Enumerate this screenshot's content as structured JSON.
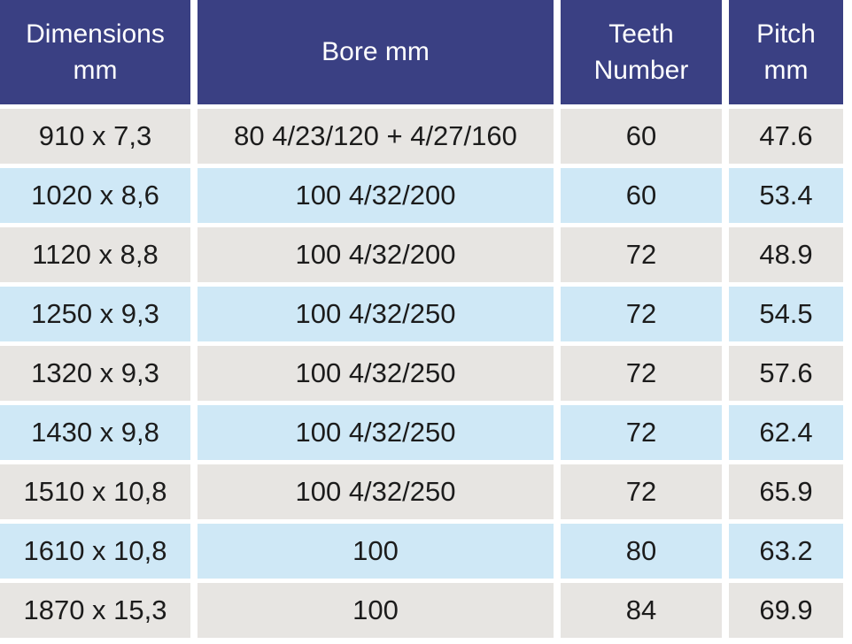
{
  "table": {
    "headers": [
      "Dimensions\nmm",
      "Bore mm",
      "Teeth\nNumber",
      "Pitch\nmm"
    ],
    "rows": [
      [
        "910 x 7,3",
        "80 4/23/120 + 4/27/160",
        "60",
        "47.6"
      ],
      [
        "1020 x 8,6",
        "100 4/32/200",
        "60",
        "53.4"
      ],
      [
        "1120 x 8,8",
        "100 4/32/200",
        "72",
        "48.9"
      ],
      [
        "1250 x 9,3",
        "100 4/32/250",
        "72",
        "54.5"
      ],
      [
        "1320 x 9,3",
        "100 4/32/250",
        "72",
        "57.6"
      ],
      [
        "1430 x 9,8",
        "100 4/32/250",
        "72",
        "62.4"
      ],
      [
        "1510 x 10,8",
        "100 4/32/250",
        "72",
        "65.9"
      ],
      [
        "1610 x 10,8",
        "100",
        "80",
        "63.2"
      ],
      [
        "1870 x 15,3",
        "100",
        "84",
        "69.9"
      ]
    ],
    "colors": {
      "header_bg": "#3a4083",
      "header_text": "#ffffff",
      "row_gray": "#e7e5e2",
      "row_blue": "#cfe8f6",
      "cell_text": "#1c1c1c",
      "background": "#ffffff"
    }
  },
  "chart_data": {
    "type": "table",
    "columns": [
      "Dimensions mm",
      "Bore mm",
      "Teeth Number",
      "Pitch mm"
    ],
    "rows": [
      [
        "910 x 7,3",
        "80 4/23/120 + 4/27/160",
        60,
        47.6
      ],
      [
        "1020 x 8,6",
        "100 4/32/200",
        60,
        53.4
      ],
      [
        "1120 x 8,8",
        "100 4/32/200",
        72,
        48.9
      ],
      [
        "1250 x 9,3",
        "100 4/32/250",
        72,
        54.5
      ],
      [
        "1320 x 9,3",
        "100 4/32/250",
        72,
        57.6
      ],
      [
        "1430 x 9,8",
        "100 4/32/250",
        72,
        62.4
      ],
      [
        "1510 x 10,8",
        "100 4/32/250",
        72,
        65.9
      ],
      [
        "1610 x 10,8",
        "100",
        80,
        63.2
      ],
      [
        "1870 x 15,3",
        "100",
        84,
        69.9
      ]
    ]
  }
}
